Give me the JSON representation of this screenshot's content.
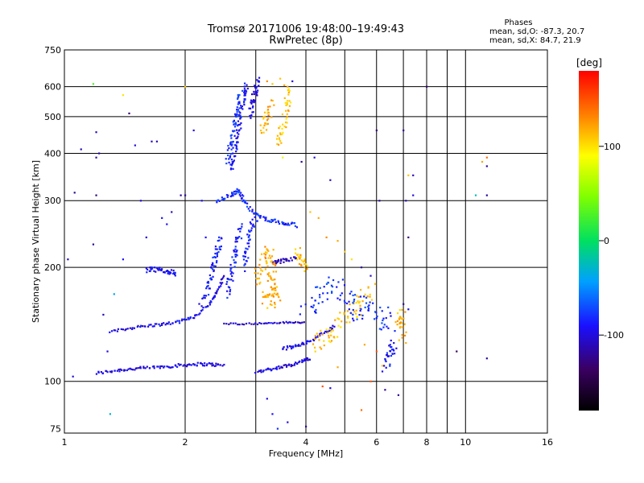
{
  "chart_data": {
    "type": "scatter",
    "title": "Tromsø 20171006 19:48:00–19:49:43",
    "subtitle": "RwPretec (8p)",
    "xlabel": "Frequency [MHz]",
    "ylabel": "Stationary phase Virtual Height [km]",
    "x_scale": "log",
    "y_scale": "log",
    "xlim": [
      1,
      16
    ],
    "ylim": [
      73,
      750
    ],
    "x_ticks": [
      1,
      2,
      4,
      6,
      8,
      10,
      16
    ],
    "x_gridlines": [
      2,
      3,
      4,
      5,
      6,
      7,
      8,
      9,
      10
    ],
    "y_ticks": [
      75,
      100,
      200,
      300,
      400,
      500,
      600,
      750
    ],
    "y_gridlines": [
      100,
      200,
      300,
      400,
      500,
      600
    ],
    "grid": true,
    "stats": {
      "heading": "Phases",
      "line_o": "mean, sd,O: -87.3, 20.7",
      "line_x": "mean, sd,X: 84.7, 21.9"
    },
    "colorbar": {
      "label": "[deg]",
      "range": [
        -180,
        180
      ],
      "ticks": [
        100,
        0,
        -100
      ],
      "placement": "right"
    },
    "series": [
      {
        "type": "trace",
        "phase": -100,
        "jitter": 0.012,
        "points": [
          [
            1.2,
            105
          ],
          [
            1.35,
            107
          ],
          [
            1.5,
            108
          ],
          [
            1.7,
            109
          ],
          [
            1.9,
            110
          ],
          [
            2.1,
            111
          ],
          [
            2.3,
            111
          ],
          [
            2.5,
            110
          ]
        ]
      },
      {
        "type": "trace",
        "phase": -100,
        "jitter": 0.012,
        "points": [
          [
            3.0,
            106
          ],
          [
            3.3,
            108
          ],
          [
            3.6,
            110
          ],
          [
            3.9,
            113
          ],
          [
            4.1,
            115
          ]
        ]
      },
      {
        "type": "trace",
        "phase": -95,
        "jitter": 0.01,
        "points": [
          [
            1.3,
            135
          ],
          [
            1.5,
            139
          ],
          [
            1.7,
            141
          ],
          [
            1.9,
            143
          ],
          [
            2.1,
            148
          ],
          [
            2.3,
            160
          ],
          [
            2.4,
            172
          ],
          [
            2.5,
            190
          ]
        ]
      },
      {
        "type": "trace",
        "phase": -105,
        "jitter": 0.006,
        "points": [
          [
            2.5,
            142
          ],
          [
            3.0,
            142
          ],
          [
            3.5,
            143
          ],
          [
            4.0,
            143
          ]
        ]
      },
      {
        "type": "trace",
        "phase": -95,
        "jitter": 0.012,
        "points": [
          [
            3.5,
            122
          ],
          [
            3.8,
            124
          ],
          [
            4.1,
            128
          ],
          [
            4.5,
            135
          ],
          [
            4.7,
            140
          ]
        ]
      },
      {
        "type": "trace",
        "phase": -85,
        "jitter": 0.03,
        "points": [
          [
            2.2,
            160
          ],
          [
            2.3,
            180
          ],
          [
            2.35,
            200
          ],
          [
            2.4,
            220
          ],
          [
            2.45,
            240
          ]
        ]
      },
      {
        "type": "trace",
        "phase": -85,
        "jitter": 0.03,
        "points": [
          [
            2.55,
            170
          ],
          [
            2.6,
            190
          ],
          [
            2.65,
            210
          ],
          [
            2.7,
            230
          ],
          [
            2.75,
            260
          ]
        ]
      },
      {
        "type": "trace",
        "phase": -85,
        "jitter": 0.03,
        "points": [
          [
            2.8,
            200
          ],
          [
            2.85,
            220
          ],
          [
            2.9,
            250
          ],
          [
            3.0,
            270
          ]
        ]
      },
      {
        "type": "trace",
        "phase": -80,
        "jitter": 0.015,
        "points": [
          [
            2.4,
            300
          ],
          [
            2.6,
            310
          ],
          [
            2.7,
            320
          ],
          [
            2.8,
            300
          ],
          [
            3.0,
            275
          ],
          [
            3.2,
            268
          ],
          [
            3.5,
            262
          ],
          [
            3.8,
            258
          ]
        ]
      },
      {
        "type": "trace",
        "phase": -90,
        "jitter": 0.025,
        "points": [
          [
            2.6,
            360
          ],
          [
            2.65,
            400
          ],
          [
            2.7,
            450
          ],
          [
            2.75,
            500
          ],
          [
            2.8,
            560
          ],
          [
            2.85,
            620
          ]
        ]
      },
      {
        "type": "trace",
        "phase": -80,
        "jitter": 0.025,
        "points": [
          [
            2.55,
            380
          ],
          [
            2.6,
            420
          ],
          [
            2.65,
            470
          ],
          [
            2.7,
            520
          ],
          [
            2.75,
            580
          ]
        ]
      },
      {
        "type": "trace",
        "phase": -100,
        "jitter": 0.025,
        "points": [
          [
            2.9,
            500
          ],
          [
            2.95,
            550
          ],
          [
            3.0,
            590
          ],
          [
            3.05,
            630
          ]
        ]
      },
      {
        "type": "trace",
        "phase": -95,
        "jitter": 0.02,
        "points": [
          [
            1.6,
            197
          ],
          [
            1.7,
            197
          ],
          [
            1.8,
            195
          ],
          [
            1.9,
            193
          ]
        ]
      },
      {
        "type": "trace",
        "phase": -110,
        "jitter": 0.015,
        "points": [
          [
            3.3,
            205
          ],
          [
            3.5,
            208
          ],
          [
            3.8,
            212
          ]
        ]
      },
      {
        "type": "trace",
        "phase": 120,
        "jitter": 0.06,
        "points": [
          [
            3.0,
            180
          ],
          [
            3.1,
            200
          ],
          [
            3.2,
            220
          ],
          [
            3.3,
            200
          ],
          [
            3.3,
            180
          ],
          [
            3.2,
            160
          ],
          [
            3.4,
            170
          ],
          [
            3.1,
            165
          ]
        ]
      },
      {
        "type": "trace",
        "phase": 120,
        "jitter": 0.04,
        "points": [
          [
            3.1,
            460
          ],
          [
            3.2,
            500
          ],
          [
            3.3,
            540
          ]
        ]
      },
      {
        "type": "trace",
        "phase": 110,
        "jitter": 0.04,
        "points": [
          [
            3.4,
            420
          ],
          [
            3.5,
            470
          ],
          [
            3.6,
            530
          ],
          [
            3.6,
            600
          ]
        ]
      },
      {
        "type": "trace",
        "phase": 115,
        "jitter": 0.04,
        "points": [
          [
            3.8,
            220
          ],
          [
            3.9,
            210
          ],
          [
            4.0,
            200
          ]
        ]
      },
      {
        "type": "trace",
        "phase": 110,
        "jitter": 0.07,
        "points": [
          [
            4.2,
            125
          ],
          [
            4.5,
            130
          ],
          [
            4.8,
            140
          ],
          [
            5.2,
            150
          ],
          [
            5.5,
            160
          ],
          [
            5.8,
            180
          ]
        ]
      },
      {
        "type": "trace",
        "phase": -80,
        "jitter": 0.08,
        "points": [
          [
            4.0,
            150
          ],
          [
            4.3,
            170
          ],
          [
            4.6,
            180
          ],
          [
            5.0,
            170
          ],
          [
            5.3,
            150
          ],
          [
            5.7,
            160
          ],
          [
            6.2,
            150
          ],
          [
            6.5,
            130
          ]
        ]
      },
      {
        "type": "trace",
        "phase": 115,
        "jitter": 0.05,
        "points": [
          [
            6.8,
            140
          ],
          [
            6.9,
            150
          ],
          [
            7.0,
            130
          ]
        ]
      },
      {
        "type": "trace",
        "phase": -90,
        "jitter": 0.05,
        "points": [
          [
            6.3,
            110
          ],
          [
            6.5,
            120
          ],
          [
            6.6,
            125
          ]
        ]
      }
    ],
    "scatter_points": [
      [
        1.05,
        103,
        -100
      ],
      [
        1.18,
        610,
        30
      ],
      [
        1.18,
        230,
        -120
      ],
      [
        1.2,
        455,
        -110
      ],
      [
        1.22,
        400,
        -120
      ],
      [
        1.2,
        390,
        -120
      ],
      [
        1.2,
        310,
        -130
      ],
      [
        1.1,
        410,
        -110
      ],
      [
        1.06,
        315,
        -120
      ],
      [
        1.02,
        210,
        -110
      ],
      [
        1.25,
        150,
        -110
      ],
      [
        1.28,
        120,
        -100
      ],
      [
        1.4,
        210,
        -90
      ],
      [
        1.45,
        510,
        -130
      ],
      [
        1.5,
        420,
        -100
      ],
      [
        1.55,
        300,
        -100
      ],
      [
        1.6,
        240,
        -100
      ],
      [
        1.65,
        430,
        -110
      ],
      [
        1.7,
        430,
        -110
      ],
      [
        1.75,
        270,
        -90
      ],
      [
        1.8,
        260,
        -90
      ],
      [
        1.85,
        280,
        -110
      ],
      [
        1.95,
        310,
        -120
      ],
      [
        2.0,
        310,
        -120
      ],
      [
        2.1,
        460,
        -100
      ],
      [
        2.2,
        300,
        -90
      ],
      [
        2.25,
        240,
        -90
      ],
      [
        1.33,
        170,
        -40
      ],
      [
        1.3,
        82,
        -30
      ],
      [
        1.4,
        570,
        100
      ],
      [
        2.0,
        600,
        110
      ],
      [
        3.45,
        630,
        110
      ],
      [
        3.7,
        620,
        -100
      ],
      [
        3.3,
        610,
        110
      ],
      [
        3.2,
        620,
        130
      ],
      [
        3.6,
        600,
        120
      ],
      [
        3.5,
        390,
        80
      ],
      [
        3.9,
        380,
        -120
      ],
      [
        4.2,
        390,
        -100
      ],
      [
        4.6,
        340,
        -110
      ],
      [
        4.1,
        280,
        110
      ],
      [
        4.3,
        270,
        120
      ],
      [
        4.5,
        240,
        130
      ],
      [
        4.8,
        235,
        120
      ],
      [
        5.0,
        220,
        110
      ],
      [
        5.2,
        210,
        100
      ],
      [
        5.5,
        200,
        -120
      ],
      [
        5.8,
        190,
        -100
      ],
      [
        6.1,
        300,
        -120
      ],
      [
        7.1,
        300,
        -110
      ],
      [
        7.4,
        310,
        -100
      ],
      [
        6.0,
        460,
        -130
      ],
      [
        7.0,
        460,
        -120
      ],
      [
        7.2,
        350,
        110
      ],
      [
        7.4,
        350,
        -110
      ],
      [
        7.2,
        240,
        -130
      ],
      [
        7.0,
        160,
        -120
      ],
      [
        7.2,
        155,
        -100
      ],
      [
        8.0,
        600,
        -130
      ],
      [
        9.5,
        120,
        -140
      ],
      [
        10.6,
        310,
        -20
      ],
      [
        11.3,
        310,
        -120
      ],
      [
        11.3,
        370,
        -120
      ],
      [
        11.3,
        390,
        140
      ],
      [
        11.0,
        380,
        120
      ],
      [
        11.3,
        115,
        -120
      ],
      [
        6.8,
        92,
        -120
      ],
      [
        5.5,
        84,
        140
      ],
      [
        4.4,
        97,
        150
      ],
      [
        3.2,
        90,
        -100
      ],
      [
        3.3,
        82,
        -90
      ],
      [
        3.6,
        78,
        -100
      ],
      [
        3.4,
        75,
        -80
      ],
      [
        4.0,
        76,
        -120
      ],
      [
        4.6,
        96,
        -100
      ],
      [
        5.8,
        100,
        150
      ],
      [
        6.2,
        110,
        110
      ],
      [
        6.3,
        95,
        -120
      ],
      [
        5.6,
        125,
        120
      ],
      [
        6.0,
        120,
        150
      ],
      [
        4.8,
        109,
        120
      ]
    ]
  }
}
